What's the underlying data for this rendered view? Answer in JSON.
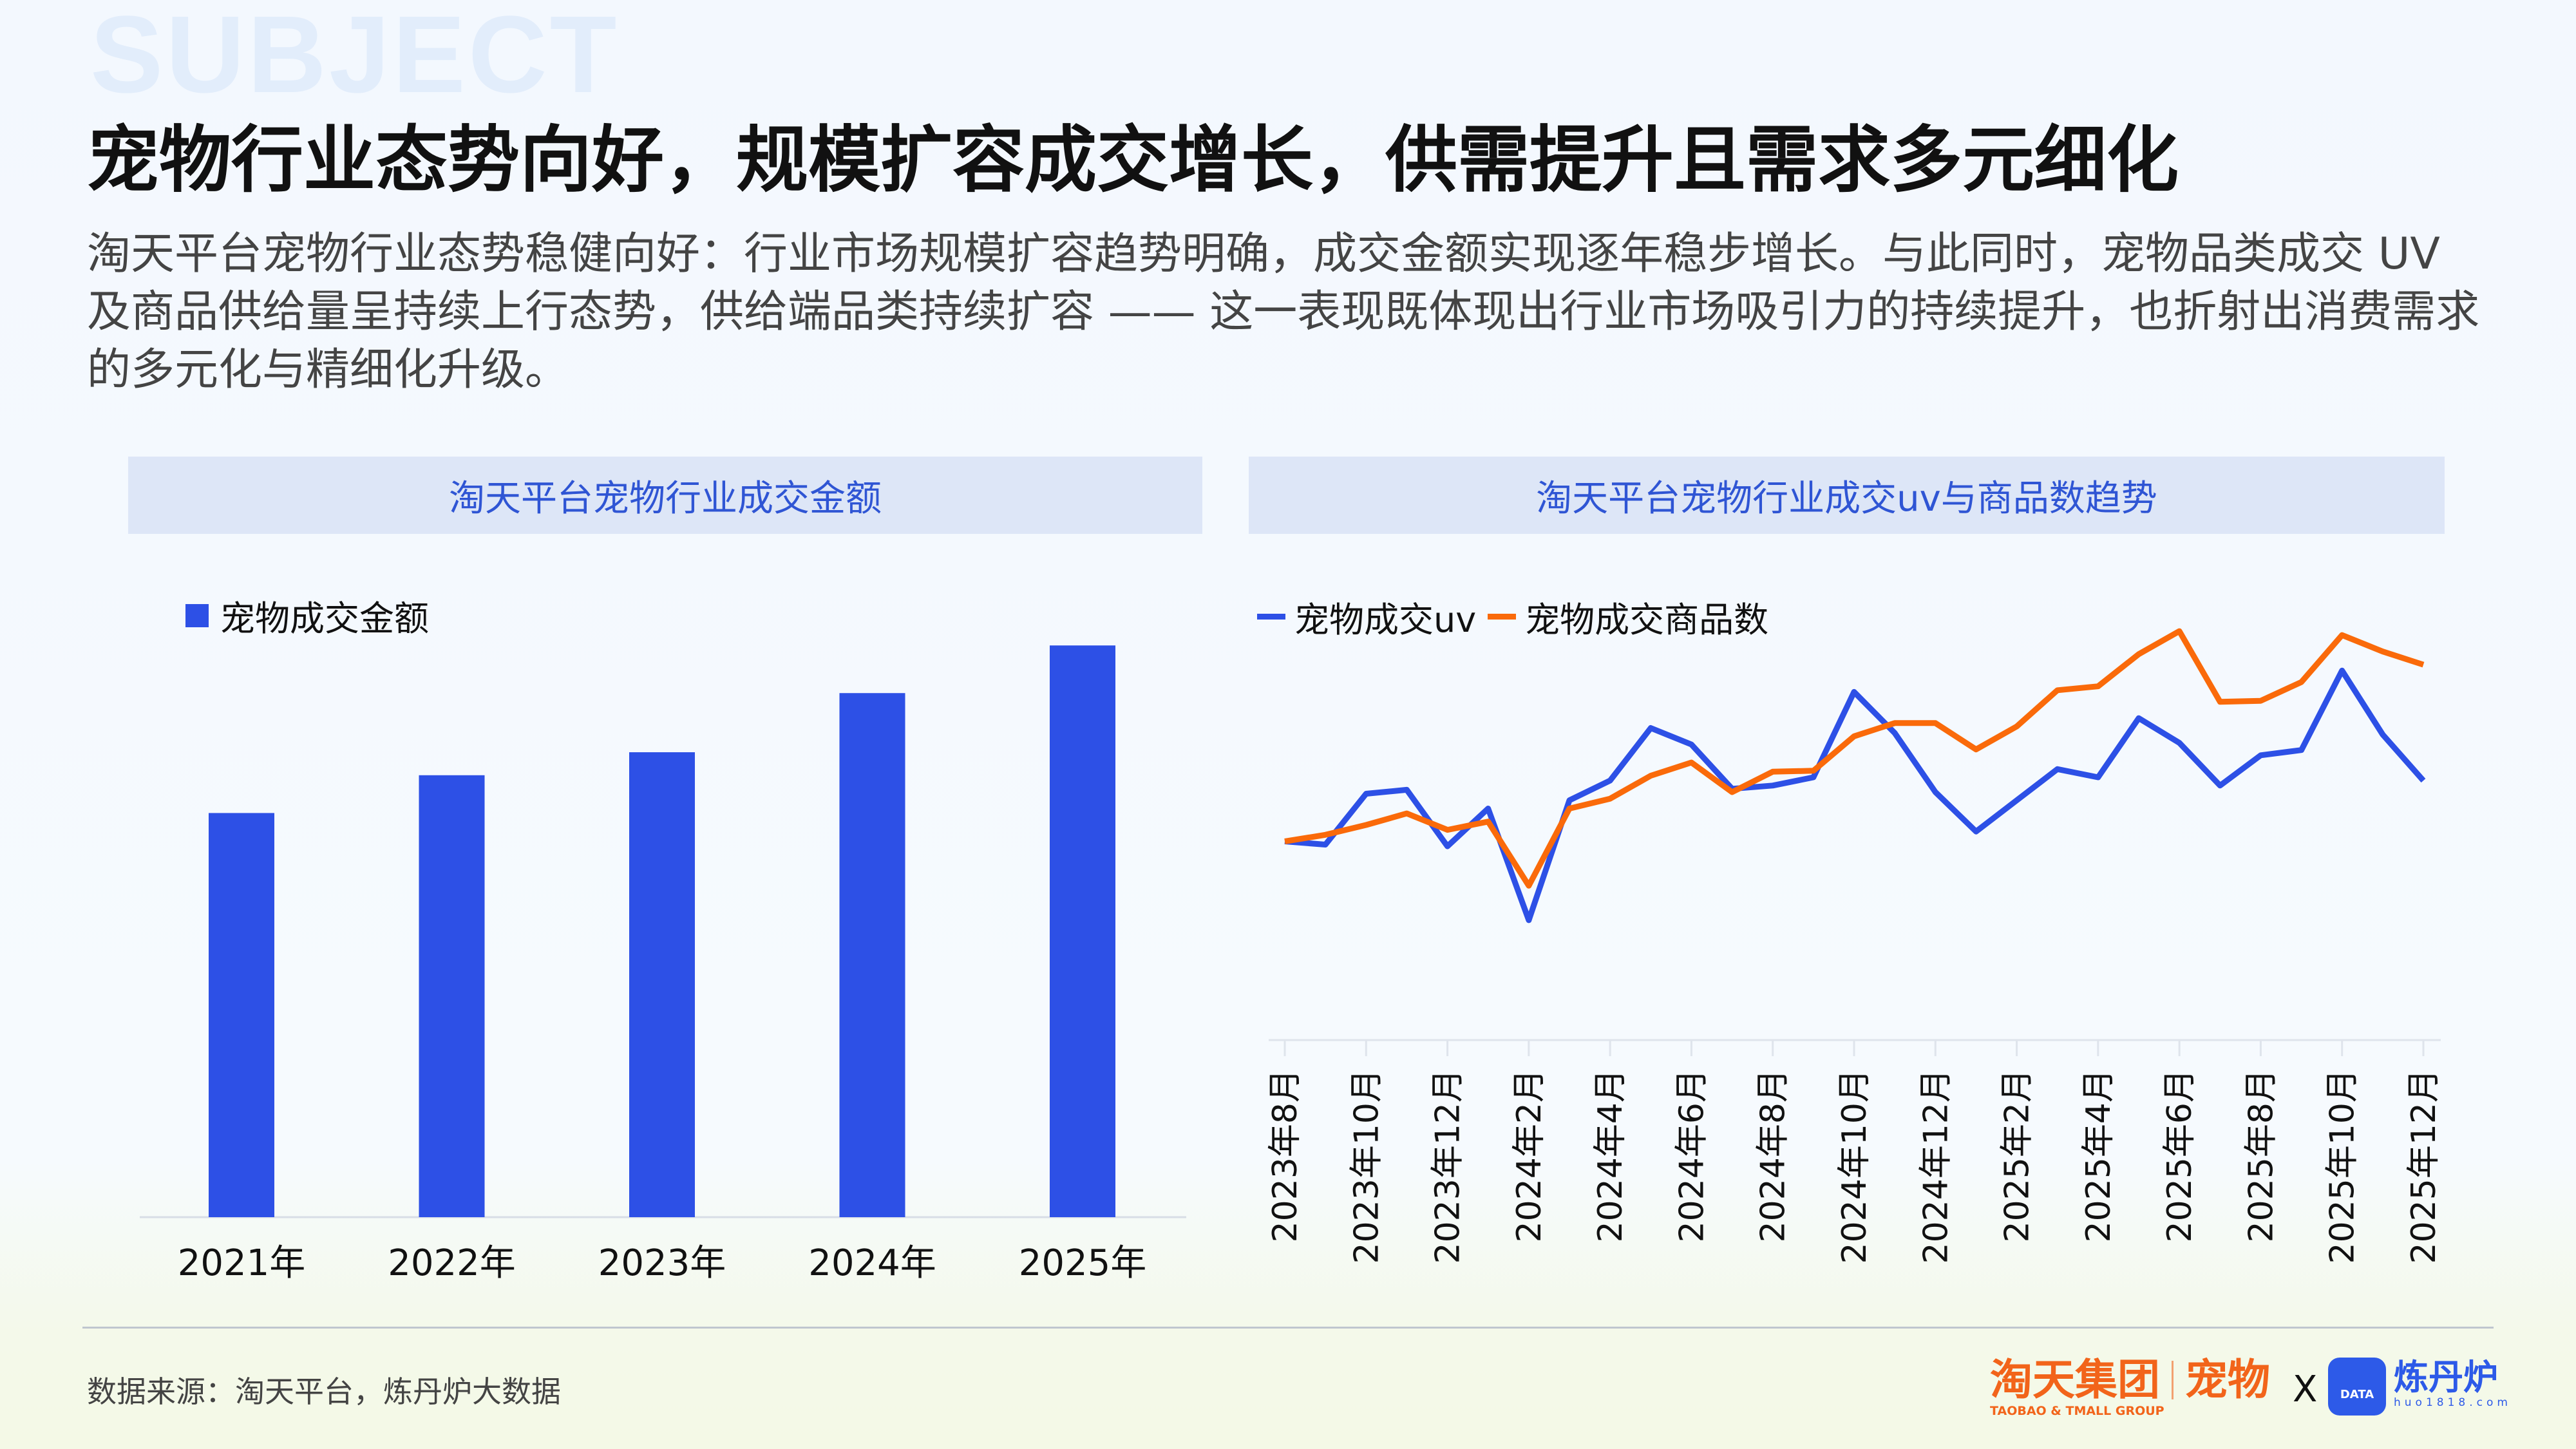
{
  "header": {
    "watermark": "SUBJECT",
    "title": "宠物行业态势向好，规模扩容成交增长，供需提升且需求多元细化"
  },
  "description": "淘天平台宠物行业态势稳健向好：行业市场规模扩容趋势明确，成交金额实现逐年稳步增长。与此同时，宠物品类成交 UV 及商品供给量呈持续上行态势，供给端品类持续扩容 —— 这一表现既体现出行业市场吸引力的持续提升，也折射出消费需求的多元化与精细化升级。",
  "colors": {
    "bar": "#2d50e6",
    "uv": "#2d50e6",
    "goods": "#fa6a0a",
    "panel_header_bg": "#dde6f7",
    "panel_header_text": "#2f55d4"
  },
  "chart_data": [
    {
      "type": "bar",
      "title": "淘天平台宠物行业成交金额",
      "legend": [
        "宠物成交金额"
      ],
      "legend_position": "top-left",
      "categories": [
        "2021年",
        "2022年",
        "2023年",
        "2024年",
        "2025年"
      ],
      "values": [
        246,
        269,
        283,
        319,
        348
      ],
      "grid": false,
      "y_axis_shown": false
    },
    {
      "type": "line",
      "title": "淘天平台宠物行业成交uv与商品数趋势",
      "legend_position": "top-left",
      "grid": false,
      "y_axis_shown": false,
      "x": [
        "2023年8月",
        "2023年9月",
        "2023年10月",
        "2023年11月",
        "2023年12月",
        "2024年1月",
        "2024年2月",
        "2024年3月",
        "2024年4月",
        "2024年5月",
        "2024年6月",
        "2024年7月",
        "2024年8月",
        "2024年9月",
        "2024年10月",
        "2024年11月",
        "2024年12月",
        "2025年1月",
        "2025年2月",
        "2025年3月",
        "2025年4月",
        "2025年5月",
        "2025年6月",
        "2025年7月",
        "2025年8月",
        "2025年9月",
        "2025年10月",
        "2025年11月",
        "2025年12月"
      ],
      "tick_labels": [
        "2023年8月",
        "2023年10月",
        "2023年12月",
        "2024年2月",
        "2024年4月",
        "2024年6月",
        "2024年8月",
        "2024年10月",
        "2024年12月",
        "2025年2月",
        "2025年4月",
        "2025年6月",
        "2025年8月",
        "2025年10月",
        "2025年12月"
      ],
      "series": [
        {
          "name": "宠物成交uv",
          "values": [
            60.5,
            59.5,
            75,
            76.2,
            59,
            70.5,
            36.5,
            73,
            79,
            95,
            90,
            76.5,
            77.5,
            80,
            106,
            93.5,
            75.5,
            63.5,
            73,
            82.5,
            80,
            98,
            90.5,
            77.5,
            86.7,
            88.3,
            112.5,
            93,
            79
          ]
        },
        {
          "name": "宠物成交商品数",
          "values": [
            60.5,
            62.5,
            65.5,
            69,
            64,
            66.5,
            47,
            70.5,
            73.5,
            80.5,
            84.5,
            75.5,
            81.7,
            82,
            92.5,
            96.5,
            96.5,
            88.5,
            95.5,
            106.5,
            107.7,
            117.5,
            124.5,
            103,
            103.3,
            109,
            123.3,
            118.3,
            114.3
          ]
        }
      ]
    }
  ],
  "footer": {
    "source": "数据来源：淘天平台，炼丹炉大数据",
    "logo_taotian": "淘天集团",
    "logo_taotian_en": "TAOBAO & TMALL GROUP",
    "logo_pet": "宠物",
    "logo_x": "X",
    "logo_ldl": "炼丹炉",
    "logo_ldl_url": "huo1818.com",
    "logo_ldl_badge": "DATA"
  }
}
